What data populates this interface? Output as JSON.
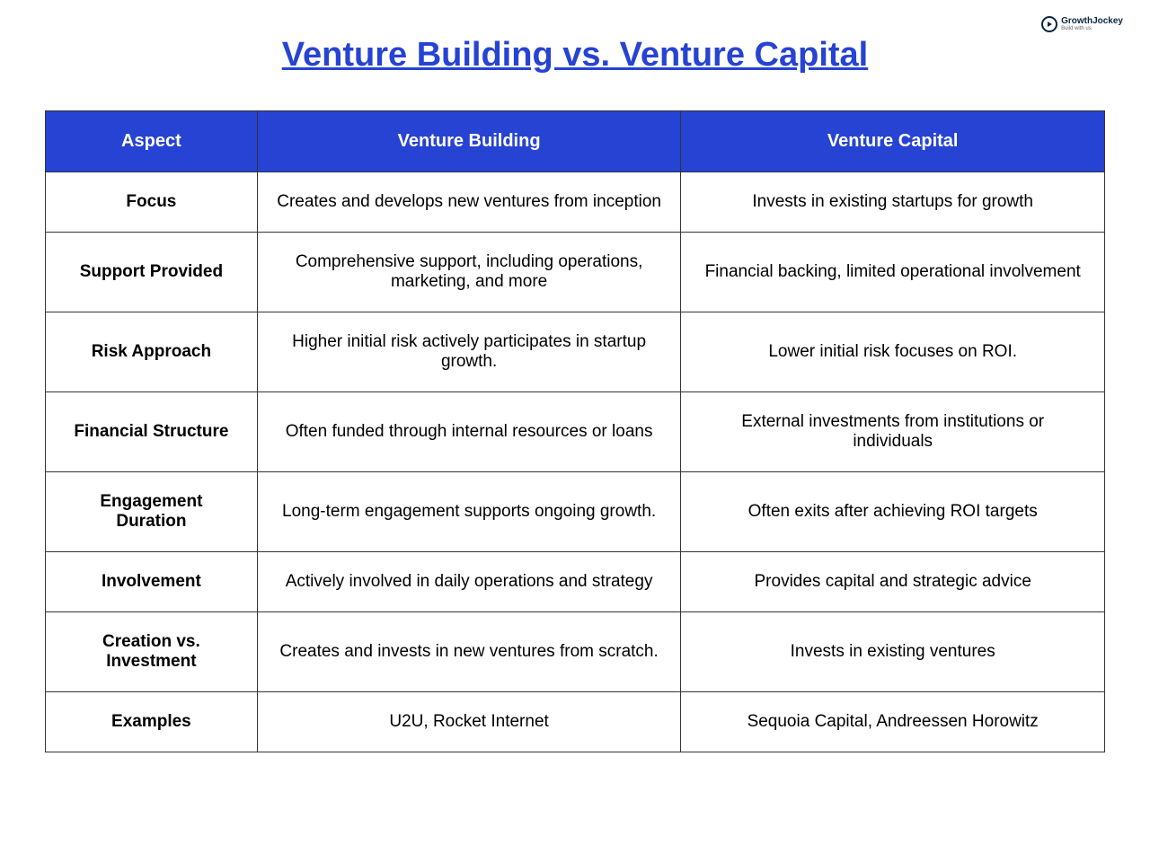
{
  "logo": {
    "name": "GrowthJockey",
    "tagline": "Build with us"
  },
  "title": "Venture Building vs. Venture Capital",
  "table": {
    "columns": [
      "Aspect",
      "Venture Building",
      "Venture Capital"
    ],
    "rows": [
      [
        "Focus",
        "Creates and develops new ventures from inception",
        "Invests in existing startups for growth"
      ],
      [
        "Support Provided",
        "Comprehensive support, including operations, marketing, and more",
        "Financial backing, limited operational involvement"
      ],
      [
        "Risk Approach",
        "Higher initial risk actively participates in startup growth.",
        "Lower initial risk focuses on ROI."
      ],
      [
        "Financial Structure",
        "Often funded through internal resources or loans",
        "External investments from institutions or individuals"
      ],
      [
        "Engagement Duration",
        "Long-term engagement supports ongoing growth.",
        "Often exits after achieving ROI targets"
      ],
      [
        "Involvement",
        "Actively involved in daily operations and strategy",
        "Provides capital and strategic advice"
      ],
      [
        "Creation vs. Investment",
        "Creates and invests in new ventures from scratch.",
        "Invests in existing ventures"
      ],
      [
        "Examples",
        "U2U, Rocket Internet",
        "Sequoia Capital, Andreessen Horowitz"
      ]
    ],
    "header_bg": "#2643d4",
    "header_text_color": "#ffffff",
    "border_color": "#333333",
    "title_color": "#2643d4",
    "background_color": "#ffffff"
  }
}
